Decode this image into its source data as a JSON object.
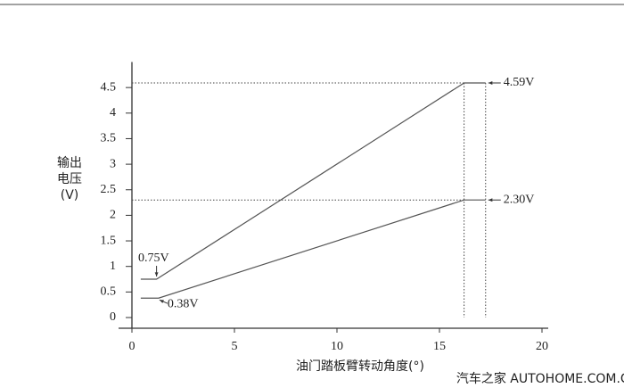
{
  "chart_data": {
    "type": "line",
    "y_label": [
      "输出",
      "电压",
      "(V)"
    ],
    "x_label": "油门踏板臂转动角度(°)",
    "xlim": [
      0,
      20
    ],
    "xticks": [
      0,
      5,
      10,
      15,
      20
    ],
    "ylim": [
      0,
      5
    ],
    "yticks": [
      0,
      0.5,
      1,
      1.5,
      2,
      2.5,
      3,
      3.5,
      4,
      4.5
    ],
    "color": "#555555",
    "series": [
      {
        "x": [
          0.43,
          1.2,
          16.2,
          17.25
        ],
        "values": [
          0.75,
          0.75,
          4.59,
          4.59
        ]
      },
      {
        "x": [
          0.43,
          1.3,
          16.2,
          17.25
        ],
        "values": [
          0.38,
          0.38,
          2.3,
          2.3
        ]
      }
    ],
    "annotations": [
      "0.75V",
      "0.38V",
      "4.59V",
      "2.30V"
    ],
    "watermark": "汽车之家  AUTOHOME.COM.CN"
  }
}
